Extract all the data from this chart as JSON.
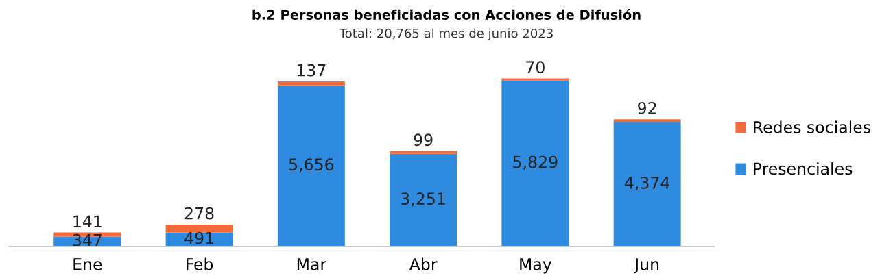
{
  "chart_data": {
    "type": "bar",
    "title": "b.2 Personas beneficiadas con Acciones de Difusión",
    "subtitle": "Total: 20,765 al mes de junio 2023",
    "categories": [
      "Ene",
      "Feb",
      "Mar",
      "Abr",
      "May",
      "Jun"
    ],
    "series": [
      {
        "name": "Presenciales",
        "color": "#2f8be0",
        "values": [
          347,
          491,
          5656,
          3251,
          5829,
          4374
        ],
        "value_labels": [
          "347",
          "491",
          "5,656",
          "3,251",
          "5,829",
          "4,374"
        ]
      },
      {
        "name": "Redes sociales",
        "color": "#f26b3a",
        "values": [
          141,
          278,
          137,
          99,
          70,
          92
        ],
        "value_labels": [
          "141",
          "278",
          "137",
          "99",
          "70",
          "92"
        ]
      }
    ],
    "stacked": true,
    "legend": "right",
    "grid": false,
    "tick_labels": "x"
  }
}
